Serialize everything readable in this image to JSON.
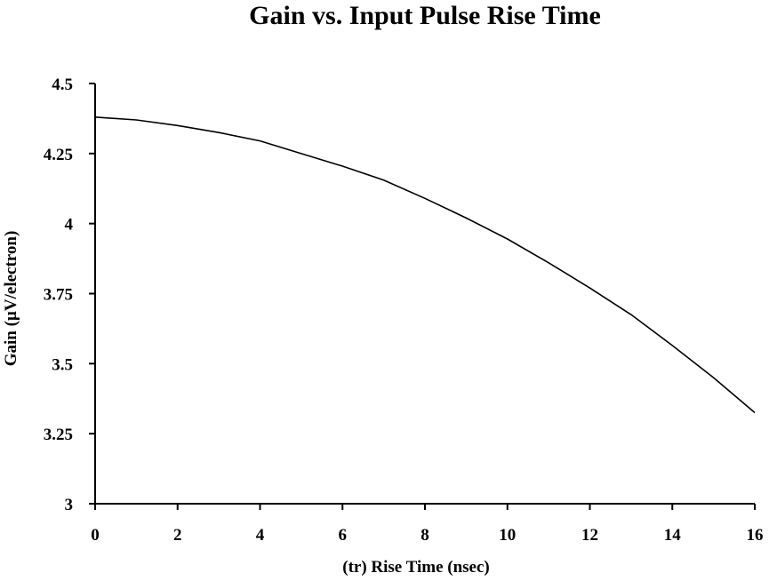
{
  "chart_data": {
    "type": "line",
    "title": "Gain vs. Input Pulse Rise Time",
    "xlabel": "(tr) Rise Time (nsec)",
    "ylabel": "Gain (µV/electron)",
    "xlim": [
      0,
      16
    ],
    "ylim": [
      3,
      4.5
    ],
    "x_ticks": [
      0,
      2,
      4,
      6,
      8,
      10,
      12,
      14,
      16
    ],
    "x_tick_labels": [
      "0",
      "2",
      "4",
      "6",
      "8",
      "10",
      "12",
      "14",
      "16"
    ],
    "y_ticks": [
      3,
      3.25,
      3.5,
      3.75,
      4,
      4.25,
      4.5
    ],
    "y_tick_labels": [
      "3",
      "3.25",
      "3.5",
      "3.75",
      "4",
      "4.25",
      "4.5"
    ],
    "grid": false,
    "series": [
      {
        "x": [
          0,
          1,
          2,
          3,
          4,
          5,
          6,
          7,
          8,
          9,
          10,
          11,
          12,
          13,
          14,
          15,
          16
        ],
        "y": [
          4.38,
          4.37,
          4.35,
          4.325,
          4.295,
          4.25,
          4.205,
          4.155,
          4.09,
          4.02,
          3.945,
          3.86,
          3.77,
          3.675,
          3.565,
          3.45,
          3.325
        ],
        "color": "#000000"
      }
    ]
  }
}
